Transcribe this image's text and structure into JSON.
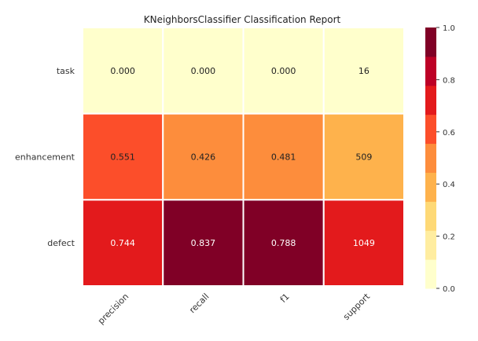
{
  "chart_data": {
    "type": "heatmap",
    "title": "KNeighborsClassifier Classification Report",
    "rows": [
      "task",
      "enhancement",
      "defect"
    ],
    "columns": [
      "precision",
      "recall",
      "f1",
      "support"
    ],
    "values": [
      [
        0.0,
        0.0,
        0.0,
        16
      ],
      [
        0.551,
        0.426,
        0.481,
        509
      ],
      [
        0.744,
        0.837,
        0.788,
        1049
      ]
    ],
    "cell_labels": [
      [
        "0.000",
        "0.000",
        "0.000",
        "16"
      ],
      [
        "0.551",
        "0.426",
        "0.481",
        "509"
      ],
      [
        "0.744",
        "0.837",
        "0.788",
        "1049"
      ]
    ],
    "color_levels": [
      [
        0,
        0,
        0,
        0
      ],
      [
        5,
        4,
        4,
        3
      ],
      [
        6,
        8,
        8,
        6
      ]
    ],
    "colorscale": {
      "levels": [
        "#ffffcc",
        "#ffeda0",
        "#fed976",
        "#feb24c",
        "#fd8d3c",
        "#fc4e2a",
        "#e31a1c",
        "#bd0026",
        "#800026"
      ],
      "range": [
        0.0,
        1.0
      ],
      "ticks": [
        0.0,
        0.2,
        0.4,
        0.6,
        0.8,
        1.0
      ],
      "tick_labels": [
        "0.0",
        "0.2",
        "0.4",
        "0.6",
        "0.8",
        "1.0"
      ]
    },
    "colors": {
      "grid_line": "#ffffff",
      "text_dark": "#222222",
      "text_light": "#ffffff",
      "axis_text": "#333333"
    }
  }
}
